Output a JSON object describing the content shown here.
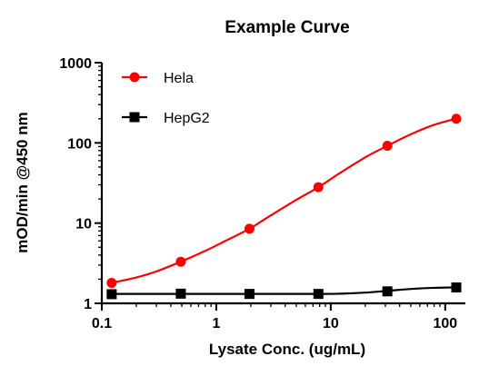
{
  "chart_data": {
    "type": "scatter",
    "title": "Example Curve",
    "xlabel": "Lysate Conc. (ug/mL)",
    "ylabel": "mOD/min @450 nm",
    "xscale": "log",
    "yscale": "log",
    "xlim": [
      0.1,
      150
    ],
    "ylim": [
      1,
      1000
    ],
    "xticks": [
      0.1,
      1,
      10,
      100
    ],
    "xtick_labels": [
      "0.1",
      "1",
      "10",
      "100"
    ],
    "yticks": [
      1,
      10,
      100,
      1000
    ],
    "ytick_labels": [
      "1",
      "10",
      "100",
      "1000"
    ],
    "grid": false,
    "legend_position": "top-left",
    "series": [
      {
        "name": "Hela",
        "color": "#ff0000",
        "marker": "circle",
        "x": [
          0.122,
          0.49,
          1.95,
          7.8,
          31.25,
          125
        ],
        "y": [
          1.8,
          3.3,
          8.5,
          28,
          92,
          200
        ],
        "curve": {
          "x": [
            0.122,
            0.2,
            0.3,
            0.49,
            0.8,
            1.2,
            1.95,
            3,
            5,
            7.8,
            12,
            20,
            31.25,
            50,
            80,
            125
          ],
          "y": [
            1.8,
            2.1,
            2.5,
            3.3,
            4.5,
            6.0,
            8.5,
            12.5,
            19.5,
            28,
            42,
            66,
            92,
            128,
            168,
            200
          ]
        }
      },
      {
        "name": "HepG2",
        "color": "#000000",
        "marker": "square",
        "x": [
          0.122,
          0.49,
          1.95,
          7.8,
          31.25,
          125
        ],
        "y": [
          1.3,
          1.32,
          1.31,
          1.31,
          1.41,
          1.58
        ],
        "curve": {
          "x": [
            0.122,
            0.49,
            1.95,
            7.8,
            12,
            20,
            31.25,
            50,
            80,
            125
          ],
          "y": [
            1.31,
            1.31,
            1.31,
            1.31,
            1.32,
            1.36,
            1.43,
            1.51,
            1.56,
            1.58
          ]
        }
      }
    ]
  }
}
